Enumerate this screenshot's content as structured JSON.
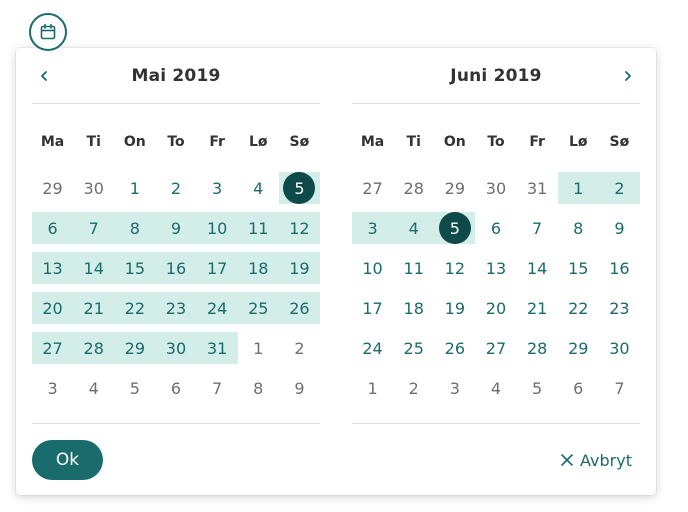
{
  "trigger": {
    "icon": "calendar-icon"
  },
  "months": [
    {
      "title": "Mai 2019",
      "weekdays": [
        "Ma",
        "Ti",
        "On",
        "To",
        "Fr",
        "Lø",
        "Sø"
      ],
      "weeks": [
        [
          {
            "d": "29",
            "out": true
          },
          {
            "d": "30",
            "out": true
          },
          {
            "d": "1"
          },
          {
            "d": "2"
          },
          {
            "d": "3"
          },
          {
            "d": "4"
          },
          {
            "d": "5",
            "sel": true,
            "range": true
          }
        ],
        [
          {
            "d": "6",
            "range": true
          },
          {
            "d": "7",
            "range": true
          },
          {
            "d": "8",
            "range": true
          },
          {
            "d": "9",
            "range": true
          },
          {
            "d": "10",
            "range": true
          },
          {
            "d": "11",
            "range": true
          },
          {
            "d": "12",
            "range": true
          }
        ],
        [
          {
            "d": "13",
            "range": true
          },
          {
            "d": "14",
            "range": true
          },
          {
            "d": "15",
            "range": true
          },
          {
            "d": "16",
            "range": true
          },
          {
            "d": "17",
            "range": true
          },
          {
            "d": "18",
            "range": true
          },
          {
            "d": "19",
            "range": true
          }
        ],
        [
          {
            "d": "20",
            "range": true
          },
          {
            "d": "21",
            "range": true
          },
          {
            "d": "22",
            "range": true
          },
          {
            "d": "23",
            "range": true
          },
          {
            "d": "24",
            "range": true
          },
          {
            "d": "25",
            "range": true
          },
          {
            "d": "26",
            "range": true
          }
        ],
        [
          {
            "d": "27",
            "range": true
          },
          {
            "d": "28",
            "range": true
          },
          {
            "d": "29",
            "range": true
          },
          {
            "d": "30",
            "range": true
          },
          {
            "d": "31",
            "range": true
          },
          {
            "d": "1",
            "out": true
          },
          {
            "d": "2",
            "out": true
          }
        ],
        [
          {
            "d": "3",
            "out": true
          },
          {
            "d": "4",
            "out": true
          },
          {
            "d": "5",
            "out": true
          },
          {
            "d": "6",
            "out": true
          },
          {
            "d": "7",
            "out": true
          },
          {
            "d": "8",
            "out": true
          },
          {
            "d": "9",
            "out": true
          }
        ]
      ]
    },
    {
      "title": "Juni 2019",
      "weekdays": [
        "Ma",
        "Ti",
        "On",
        "To",
        "Fr",
        "Lø",
        "Sø"
      ],
      "weeks": [
        [
          {
            "d": "27",
            "out": true
          },
          {
            "d": "28",
            "out": true
          },
          {
            "d": "29",
            "out": true
          },
          {
            "d": "30",
            "out": true
          },
          {
            "d": "31",
            "out": true
          },
          {
            "d": "1",
            "range": true
          },
          {
            "d": "2",
            "range": true
          }
        ],
        [
          {
            "d": "3",
            "range": true
          },
          {
            "d": "4",
            "range": true
          },
          {
            "d": "5",
            "sel": true,
            "range": true
          },
          {
            "d": "6"
          },
          {
            "d": "7"
          },
          {
            "d": "8"
          },
          {
            "d": "9"
          }
        ],
        [
          {
            "d": "10"
          },
          {
            "d": "11"
          },
          {
            "d": "12"
          },
          {
            "d": "13"
          },
          {
            "d": "14"
          },
          {
            "d": "15"
          },
          {
            "d": "16"
          }
        ],
        [
          {
            "d": "17"
          },
          {
            "d": "18"
          },
          {
            "d": "19"
          },
          {
            "d": "20"
          },
          {
            "d": "21"
          },
          {
            "d": "22"
          },
          {
            "d": "23"
          }
        ],
        [
          {
            "d": "24"
          },
          {
            "d": "25"
          },
          {
            "d": "26"
          },
          {
            "d": "27"
          },
          {
            "d": "28"
          },
          {
            "d": "29"
          },
          {
            "d": "30"
          }
        ],
        [
          {
            "d": "1",
            "out": true
          },
          {
            "d": "2",
            "out": true
          },
          {
            "d": "3",
            "out": true
          },
          {
            "d": "4",
            "out": true
          },
          {
            "d": "5",
            "out": true
          },
          {
            "d": "6",
            "out": true
          },
          {
            "d": "7",
            "out": true
          }
        ]
      ]
    }
  ],
  "footer": {
    "ok_label": "Ok",
    "cancel_label": "Avbryt"
  },
  "colors": {
    "accent": "#1a6b6b",
    "selected": "#0e4a4a",
    "range": "#d3ede9",
    "muted": "#6f6f6f"
  }
}
